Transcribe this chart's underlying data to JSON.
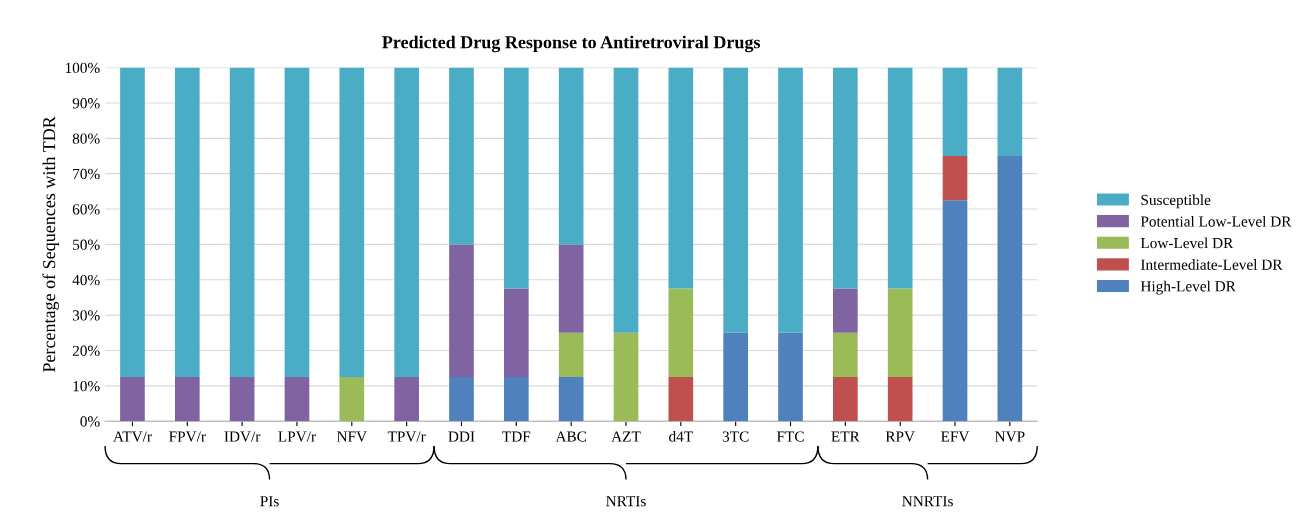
{
  "chart_data": {
    "type": "bar",
    "stacked": true,
    "title": "Predicted Drug Response to Antiretroviral Drugs",
    "ylabel": "Percentage of Sequences with TDR",
    "categories": [
      "ATV/r",
      "FPV/r",
      "IDV/r",
      "LPV/r",
      "NFV",
      "TPV/r",
      "DDI",
      "TDF",
      "ABC",
      "AZT",
      "d4T",
      "3TC",
      "FTC",
      "ETR",
      "RPV",
      "EFV",
      "NVP"
    ],
    "series": [
      {
        "name": "High-Level DR",
        "color": "#4f81bd",
        "values": [
          0,
          0,
          0,
          0,
          0,
          0,
          12.5,
          12.5,
          12.5,
          0,
          0,
          25,
          25,
          0,
          0,
          62.5,
          75
        ]
      },
      {
        "name": "Intermediate-Level DR",
        "color": "#c0504d",
        "values": [
          0,
          0,
          0,
          0,
          0,
          0,
          0,
          0,
          0,
          0,
          12.5,
          0,
          0,
          12.5,
          12.5,
          12.5,
          0
        ]
      },
      {
        "name": "Low-Level DR",
        "color": "#9bbb59",
        "values": [
          0,
          0,
          0,
          0,
          12.5,
          0,
          0,
          0,
          12.5,
          25,
          25,
          0,
          0,
          12.5,
          25,
          0,
          0
        ]
      },
      {
        "name": "Potential Low-Level DR",
        "color": "#8064a2",
        "values": [
          12.5,
          12.5,
          12.5,
          12.5,
          0,
          12.5,
          37.5,
          25,
          25,
          0,
          0,
          0,
          0,
          12.5,
          0,
          0,
          0
        ]
      },
      {
        "name": "Susceptible",
        "color": "#4bacc6",
        "values": [
          87.5,
          87.5,
          87.5,
          87.5,
          87.5,
          87.5,
          50,
          62.5,
          50,
          75,
          62.5,
          75,
          75,
          62.5,
          62.5,
          25,
          25
        ]
      }
    ],
    "ylim": [
      0,
      100
    ],
    "yticks": [
      {
        "value": 0,
        "label": "0%"
      },
      {
        "value": 10,
        "label": "10%"
      },
      {
        "value": 20,
        "label": "20%"
      },
      {
        "value": 30,
        "label": "30%"
      },
      {
        "value": 40,
        "label": "40%"
      },
      {
        "value": 50,
        "label": "50%"
      },
      {
        "value": 60,
        "label": "60%"
      },
      {
        "value": 70,
        "label": "70%"
      },
      {
        "value": 80,
        "label": "80%"
      },
      {
        "value": 90,
        "label": "90%"
      },
      {
        "value": 100,
        "label": "100%"
      }
    ],
    "grid": "y",
    "legend": "right",
    "annotations": [
      "PIs",
      "NRTIs",
      "NNRTIs"
    ]
  }
}
